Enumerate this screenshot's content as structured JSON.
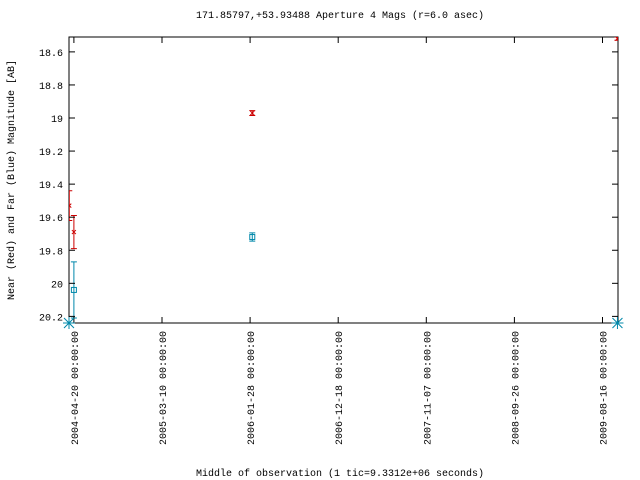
{
  "chart_data": {
    "type": "errorbar",
    "title": "171.85797,+53.93488   Aperture 4 Mags (r=6.0 asec)",
    "x_label": "Middle of observation (1 tic=9.3312e+06 seconds)",
    "y_label": "Near (Red) and Far (Blue) Magnitude [AB]",
    "y_inverted": true,
    "xlim": [
      "2004-04-02",
      "2009-10-12"
    ],
    "xticks": [
      {
        "value": "2004-04-20",
        "label": "2004-04-20 00:00:00"
      },
      {
        "value": "2005-03-10",
        "label": "2005-03-10 00:00:00"
      },
      {
        "value": "2006-01-28",
        "label": "2006-01-28 00:00:00"
      },
      {
        "value": "2006-12-18",
        "label": "2006-12-18 00:00:00"
      },
      {
        "value": "2007-11-07",
        "label": "2007-11-07 00:00:00"
      },
      {
        "value": "2008-09-26",
        "label": "2008-09-26 00:00:00"
      },
      {
        "value": "2009-08-16",
        "label": "2009-08-16 00:00:00"
      }
    ],
    "ylim": [
      20.24,
      18.51
    ],
    "yticks": [
      18.6,
      18.8,
      19,
      19.2,
      19.4,
      19.6,
      19.8,
      20,
      20.2
    ],
    "series": [
      {
        "color": "#cc0000",
        "marker": "cross",
        "x": [
          "2004-04-03",
          "2004-04-20",
          "2006-02-05",
          "2009-10-10"
        ],
        "values": [
          19.53,
          19.69,
          18.97,
          18.52
        ],
        "errors": [
          0.09,
          0.1,
          0.015,
          0.01
        ]
      },
      {
        "color": "#0088aa",
        "marker": "square",
        "x": [
          "2004-04-20",
          "2006-02-05"
        ],
        "values": [
          20.04,
          19.72
        ],
        "errors": [
          0.17,
          0.025
        ]
      },
      {
        "color": "#0088aa",
        "marker": "star",
        "x": [
          "2004-04-02",
          "2009-10-10"
        ],
        "values": [
          20.24,
          20.24
        ]
      }
    ]
  }
}
